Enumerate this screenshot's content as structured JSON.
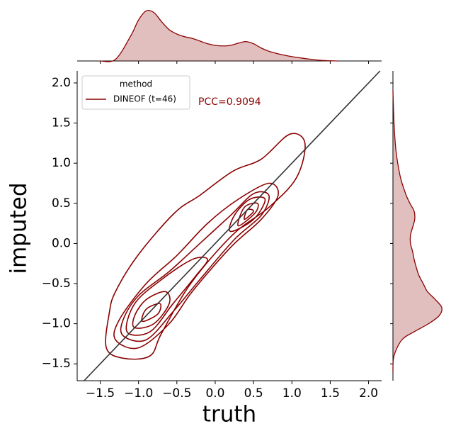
{
  "chart_data": {
    "type": "kde_joint",
    "xlabel": "truth",
    "ylabel": "imputed",
    "annotation": "PCC=0.9094",
    "legend_title": "method",
    "legend_loc": "upper left",
    "identity_line": true,
    "xlim": [
      -1.8,
      2.17
    ],
    "ylim": [
      -1.71,
      2.15
    ],
    "xticks": [
      {
        "value": -1.5,
        "label": "−1.5"
      },
      {
        "value": -1.0,
        "label": "−1.0"
      },
      {
        "value": -0.5,
        "label": "−0.5"
      },
      {
        "value": 0.0,
        "label": "0.0"
      },
      {
        "value": 0.5,
        "label": "0.5"
      },
      {
        "value": 1.0,
        "label": "1.0"
      },
      {
        "value": 1.5,
        "label": "1.5"
      },
      {
        "value": 2.0,
        "label": "2.0"
      }
    ],
    "yticks": [
      {
        "value": -1.5,
        "label": "−1.5"
      },
      {
        "value": -1.0,
        "label": "−1.0"
      },
      {
        "value": -0.5,
        "label": "−0.5"
      },
      {
        "value": 0.0,
        "label": "0.0"
      },
      {
        "value": 0.5,
        "label": "0.5"
      },
      {
        "value": 1.0,
        "label": "1.0"
      },
      {
        "value": 1.5,
        "label": "1.5"
      },
      {
        "value": 2.0,
        "label": "2.0"
      }
    ],
    "series": [
      {
        "name": "DINEOF (t=46)",
        "color": "#8b0000",
        "contours": [
          {
            "x": [
              -1.42,
              -1.2,
              -0.85,
              -0.7,
              -0.32,
              0.23,
              0.7,
              1.06,
              1.17,
              0.97,
              0.6,
              0.23,
              -0.2,
              -0.53,
              -1.01,
              -1.3,
              -1.38
            ],
            "y": [
              -1.3,
              -1.43,
              -1.4,
              -1.12,
              -0.5,
              0.11,
              0.45,
              0.82,
              1.25,
              1.36,
              1.05,
              0.9,
              0.6,
              0.38,
              -0.15,
              -0.6,
              -0.86
            ]
          },
          {
            "x": [
              -1.3,
              -1.0,
              -0.6,
              -0.3,
              0.2,
              0.6,
              0.82,
              0.7,
              0.3,
              -0.1,
              -0.5,
              -0.9,
              -1.25
            ],
            "y": [
              -1.2,
              -1.3,
              -1.0,
              -0.6,
              -0.05,
              0.3,
              0.6,
              0.75,
              0.55,
              0.25,
              -0.15,
              -0.5,
              -0.95
            ]
          },
          {
            "x": [
              -1.2,
              -0.9,
              -0.55,
              -0.2,
              0.25,
              0.6,
              0.7,
              0.5,
              0.2,
              -0.2,
              -0.6,
              -1.0,
              -1.2
            ],
            "y": [
              -1.15,
              -1.2,
              -0.85,
              -0.45,
              0.05,
              0.35,
              0.6,
              0.62,
              0.35,
              0.0,
              -0.35,
              -0.65,
              -0.95
            ]
          },
          {
            "x": [
              -1.15,
              -0.85,
              -0.55,
              -0.25,
              -0.1,
              -0.3,
              -0.7,
              -1.05
            ],
            "y": [
              -1.1,
              -1.1,
              -0.75,
              -0.4,
              -0.2,
              -0.2,
              -0.45,
              -0.75
            ]
          },
          {
            "x": [
              0.2,
              0.5,
              0.65,
              0.45,
              0.25
            ],
            "y": [
              0.15,
              0.3,
              0.55,
              0.55,
              0.35
            ]
          },
          {
            "x": [
              -1.05,
              -0.8,
              -0.6,
              -0.65,
              -0.9,
              -1.05
            ],
            "y": [
              -1.05,
              -1.0,
              -0.75,
              -0.6,
              -0.7,
              -0.9
            ]
          },
          {
            "x": [
              0.3,
              0.52,
              0.55,
              0.38
            ],
            "y": [
              0.22,
              0.38,
              0.5,
              0.45
            ]
          },
          {
            "x": [
              -0.95,
              -0.75,
              -0.72,
              -0.9
            ],
            "y": [
              -0.97,
              -0.88,
              -0.75,
              -0.82
            ]
          },
          {
            "x": [
              0.38,
              0.5,
              0.42
            ],
            "y": [
              0.3,
              0.4,
              0.42
            ]
          }
        ],
        "marginal_x": {
          "x": [
            -1.5,
            -1.3,
            -1.1,
            -1.0,
            -0.9,
            -0.8,
            -0.7,
            -0.6,
            -0.5,
            -0.4,
            -0.3,
            -0.2,
            -0.1,
            0.0,
            0.1,
            0.2,
            0.3,
            0.4,
            0.5,
            0.6,
            0.7,
            0.8,
            1.0,
            1.2,
            1.4,
            1.6
          ],
          "density": [
            0.0,
            0.03,
            0.47,
            0.76,
            0.93,
            0.9,
            0.73,
            0.58,
            0.5,
            0.45,
            0.42,
            0.37,
            0.32,
            0.29,
            0.28,
            0.29,
            0.33,
            0.36,
            0.32,
            0.24,
            0.18,
            0.14,
            0.08,
            0.04,
            0.01,
            0.0
          ]
        },
        "marginal_y": {
          "y": [
            -1.6,
            -1.4,
            -1.2,
            -1.1,
            -1.0,
            -0.9,
            -0.8,
            -0.7,
            -0.6,
            -0.5,
            -0.4,
            -0.3,
            -0.2,
            -0.1,
            0.0,
            0.1,
            0.2,
            0.3,
            0.4,
            0.5,
            0.6,
            0.8,
            1.0,
            1.2,
            1.5,
            1.9
          ],
          "density": [
            0.0,
            0.02,
            0.17,
            0.4,
            0.67,
            0.87,
            0.92,
            0.8,
            0.65,
            0.57,
            0.49,
            0.44,
            0.4,
            0.37,
            0.33,
            0.33,
            0.37,
            0.41,
            0.4,
            0.32,
            0.25,
            0.15,
            0.09,
            0.05,
            0.02,
            0.0
          ]
        }
      }
    ],
    "density_lim": [
      0,
      1
    ]
  }
}
